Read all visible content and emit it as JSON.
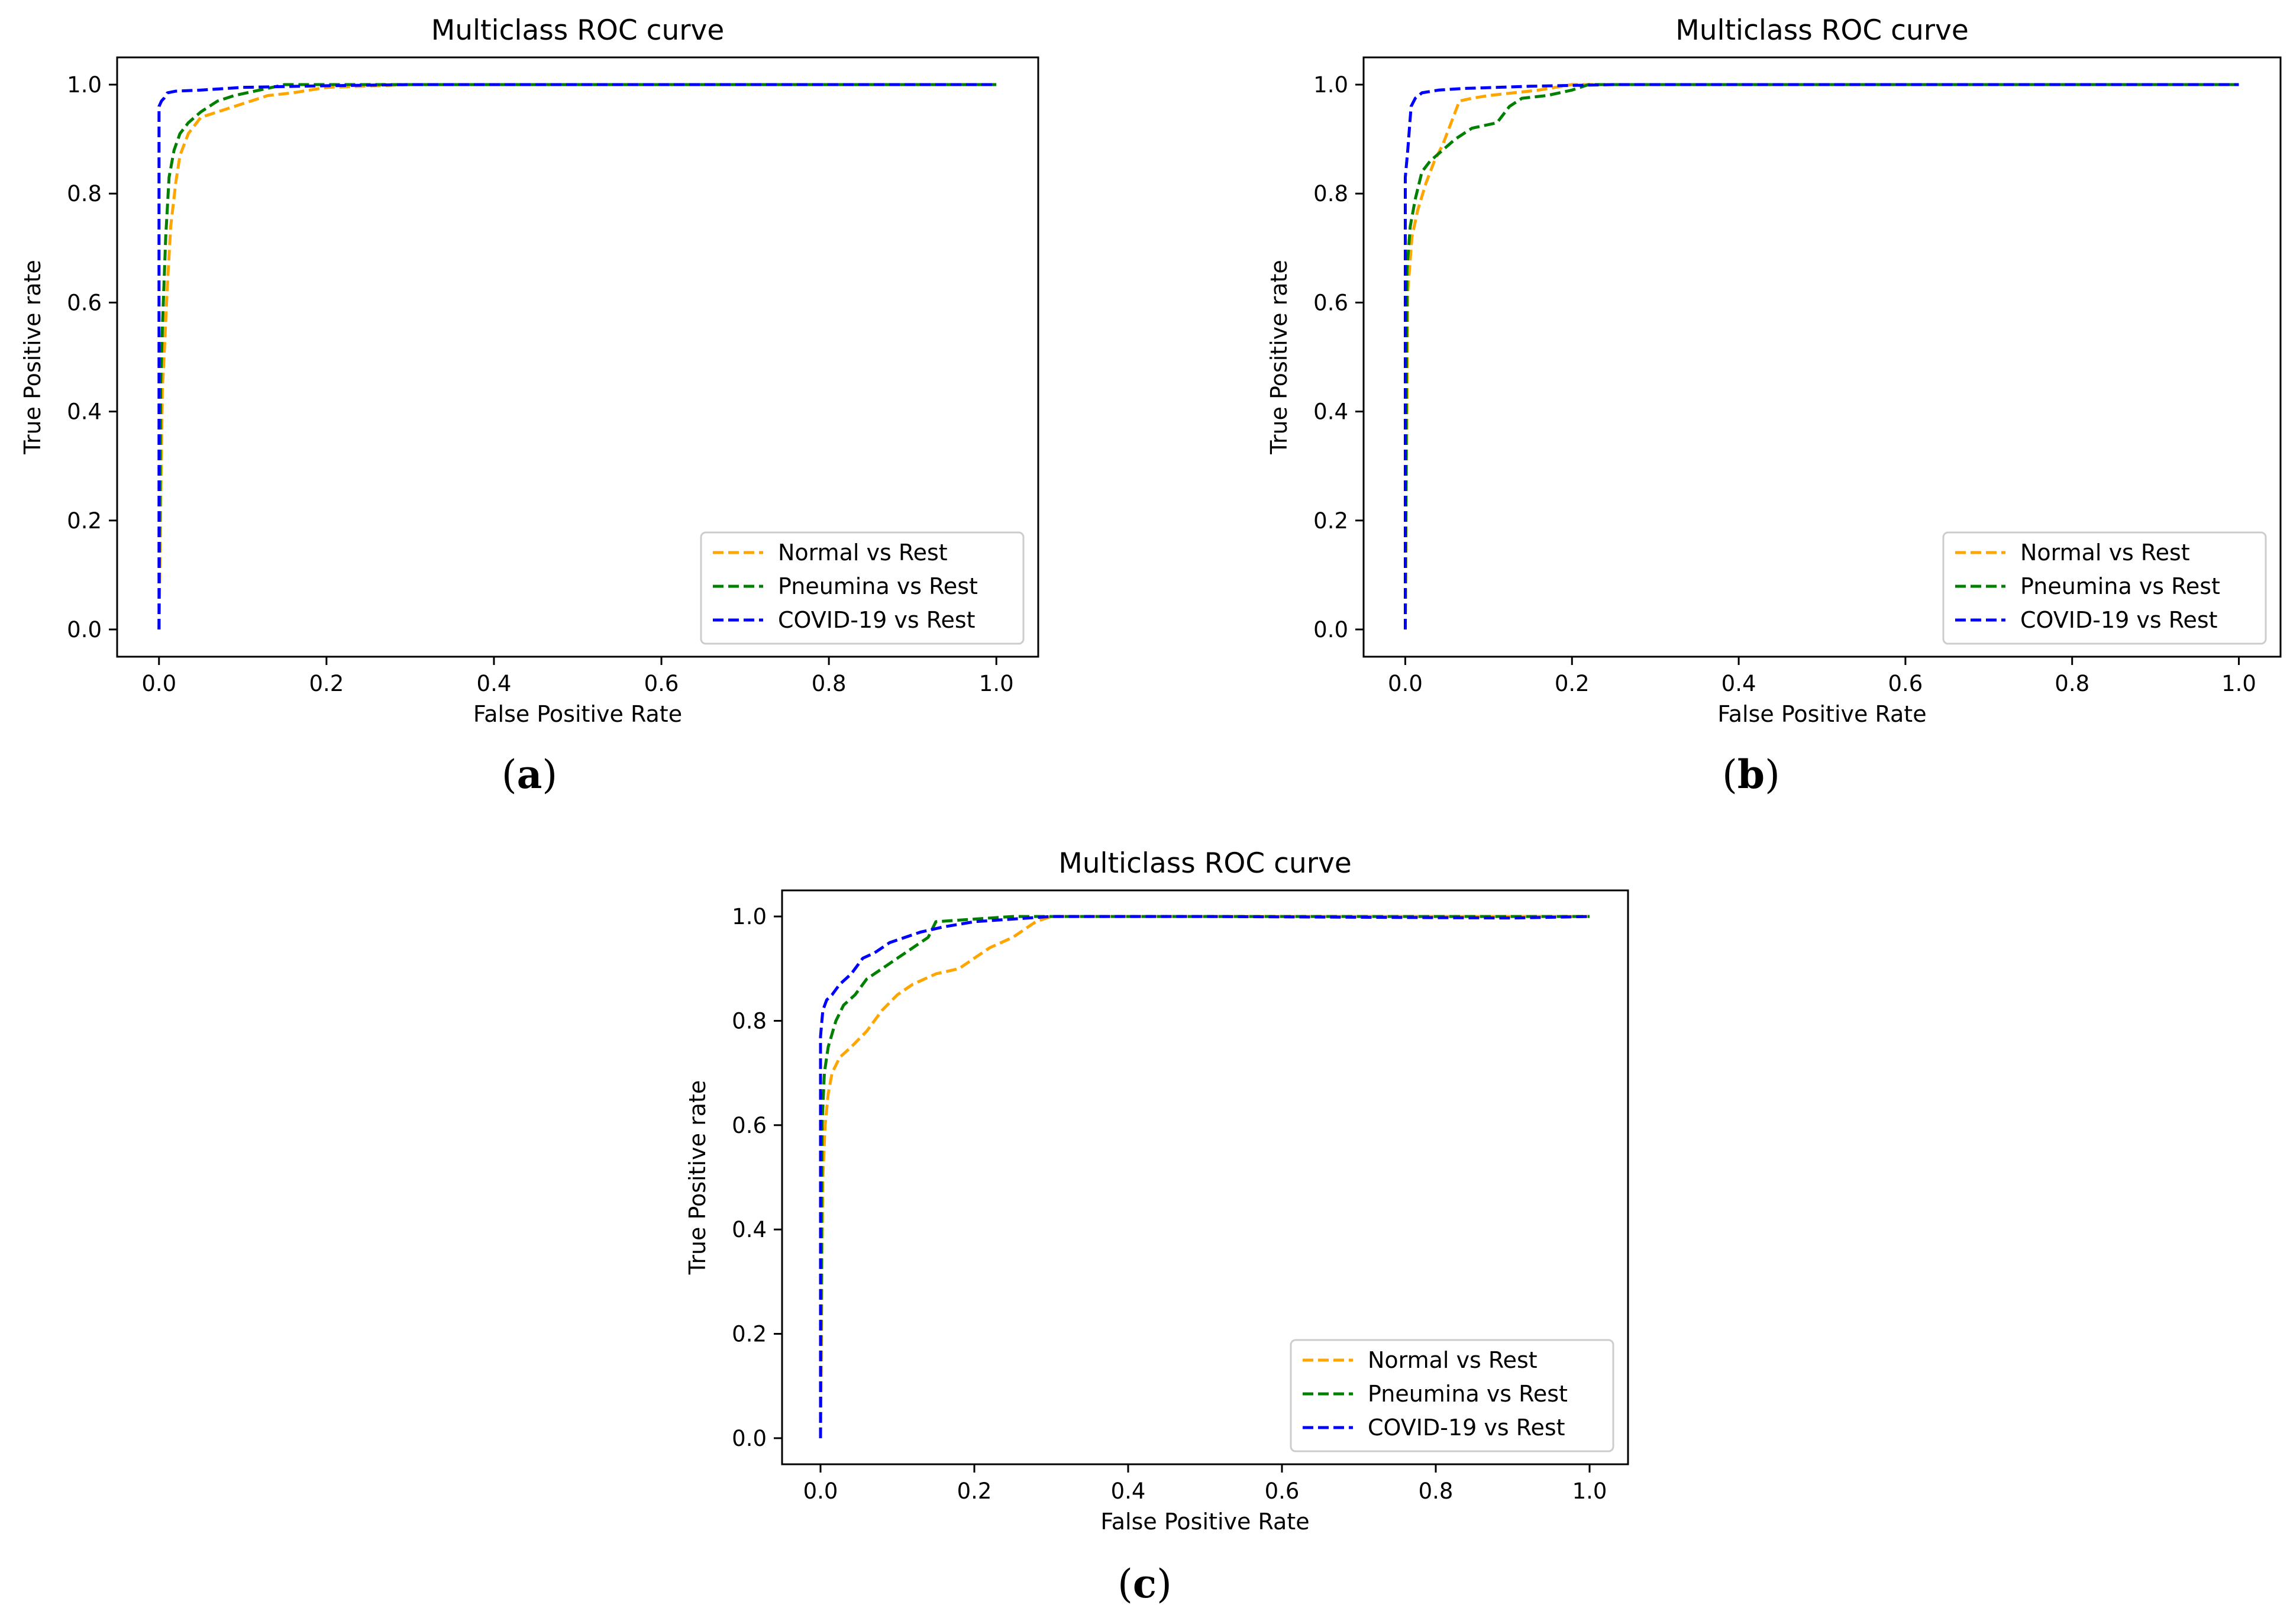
{
  "chart_data": [
    {
      "type": "line",
      "panel": "a",
      "title": "Multiclass ROC curve",
      "xlabel": "False Positive Rate",
      "ylabel": "True Positive rate",
      "xlim": [
        -0.05,
        1.05
      ],
      "ylim": [
        -0.05,
        1.05
      ],
      "xticks": [
        "0.0",
        "0.2",
        "0.4",
        "0.6",
        "0.8",
        "1.0"
      ],
      "yticks": [
        "0.0",
        "0.2",
        "0.4",
        "0.6",
        "0.8",
        "1.0"
      ],
      "legend_position": "lower-right",
      "series": [
        {
          "name": "Normal vs Rest",
          "color": "#FFA500",
          "x": [
            0.0,
            0.004,
            0.006,
            0.01,
            0.014,
            0.02,
            0.025,
            0.035,
            0.05,
            0.07,
            0.09,
            0.11,
            0.13,
            0.16,
            0.2,
            0.3,
            0.45,
            1.0
          ],
          "y": [
            0.0,
            0.44,
            0.5,
            0.63,
            0.74,
            0.82,
            0.87,
            0.91,
            0.94,
            0.95,
            0.96,
            0.97,
            0.98,
            0.985,
            0.995,
            1.0,
            1.0,
            1.0
          ]
        },
        {
          "name": "Pneumina vs Rest",
          "color": "#008000",
          "x": [
            0.0,
            0.002,
            0.004,
            0.008,
            0.012,
            0.018,
            0.025,
            0.035,
            0.05,
            0.07,
            0.09,
            0.12,
            0.15,
            0.2,
            0.3,
            0.45,
            1.0
          ],
          "y": [
            0.0,
            0.45,
            0.55,
            0.72,
            0.83,
            0.88,
            0.91,
            0.93,
            0.95,
            0.97,
            0.98,
            0.99,
            1.0,
            1.0,
            1.0,
            1.0,
            1.0
          ]
        },
        {
          "name": "COVID-19 vs Rest",
          "color": "#0000FF",
          "x": [
            0.0,
            0.0,
            0.003,
            0.006,
            0.01,
            0.02,
            0.05,
            0.1,
            0.2,
            0.3,
            0.45,
            1.0
          ],
          "y": [
            0.0,
            0.96,
            0.97,
            0.975,
            0.985,
            0.988,
            0.99,
            0.995,
            0.998,
            1.0,
            1.0,
            1.0
          ]
        }
      ]
    },
    {
      "type": "line",
      "panel": "b",
      "title": "Multiclass ROC curve",
      "xlabel": "False Positive Rate",
      "ylabel": "True Positive rate",
      "xlim": [
        -0.05,
        1.05
      ],
      "ylim": [
        -0.05,
        1.05
      ],
      "xticks": [
        "0.0",
        "0.2",
        "0.4",
        "0.6",
        "0.8",
        "1.0"
      ],
      "yticks": [
        "0.0",
        "0.2",
        "0.4",
        "0.6",
        "0.8",
        "1.0"
      ],
      "legend_position": "lower-right",
      "series": [
        {
          "name": "Normal vs Rest",
          "color": "#FFA500",
          "x": [
            0.0,
            0.003,
            0.008,
            0.015,
            0.025,
            0.035,
            0.045,
            0.055,
            0.065,
            0.08,
            0.1,
            0.13,
            0.16,
            0.2,
            0.3,
            1.0
          ],
          "y": [
            0.0,
            0.62,
            0.72,
            0.77,
            0.82,
            0.86,
            0.89,
            0.93,
            0.97,
            0.975,
            0.98,
            0.985,
            0.99,
            1.0,
            1.0,
            1.0
          ]
        },
        {
          "name": "Pneumina vs Rest",
          "color": "#008000",
          "x": [
            0.0,
            0.002,
            0.006,
            0.012,
            0.02,
            0.03,
            0.045,
            0.06,
            0.08,
            0.11,
            0.125,
            0.14,
            0.17,
            0.2,
            0.22,
            0.3,
            1.0
          ],
          "y": [
            0.0,
            0.66,
            0.74,
            0.79,
            0.84,
            0.86,
            0.88,
            0.9,
            0.92,
            0.93,
            0.96,
            0.975,
            0.98,
            0.99,
            1.0,
            1.0,
            1.0
          ]
        },
        {
          "name": "COVID-19 vs Rest",
          "color": "#0000FF",
          "x": [
            0.0,
            0.0,
            0.003,
            0.007,
            0.012,
            0.02,
            0.04,
            0.07,
            0.15,
            0.25,
            0.36,
            1.0
          ],
          "y": [
            0.0,
            0.83,
            0.88,
            0.96,
            0.975,
            0.985,
            0.99,
            0.993,
            0.997,
            1.0,
            1.0,
            1.0
          ]
        }
      ]
    },
    {
      "type": "line",
      "panel": "c",
      "title": "Multiclass ROC curve",
      "xlabel": "False Positive Rate",
      "ylabel": "True Positive rate",
      "xlim": [
        -0.05,
        1.05
      ],
      "ylim": [
        -0.05,
        1.05
      ],
      "xticks": [
        "0.0",
        "0.2",
        "0.4",
        "0.6",
        "0.8",
        "1.0"
      ],
      "yticks": [
        "0.0",
        "0.2",
        "0.4",
        "0.6",
        "0.8",
        "1.0"
      ],
      "legend_position": "lower-right",
      "series": [
        {
          "name": "Normal vs Rest",
          "color": "#FFA500",
          "x": [
            0.0,
            0.003,
            0.006,
            0.01,
            0.015,
            0.025,
            0.04,
            0.06,
            0.08,
            0.1,
            0.12,
            0.15,
            0.18,
            0.2,
            0.22,
            0.25,
            0.28,
            0.3,
            0.5,
            1.0
          ],
          "y": [
            0.0,
            0.5,
            0.6,
            0.66,
            0.7,
            0.73,
            0.75,
            0.78,
            0.82,
            0.85,
            0.87,
            0.89,
            0.9,
            0.92,
            0.94,
            0.96,
            0.99,
            1.0,
            1.0,
            1.0
          ]
        },
        {
          "name": "Pneumina vs Rest",
          "color": "#008000",
          "x": [
            0.0,
            0.002,
            0.005,
            0.01,
            0.02,
            0.03,
            0.045,
            0.06,
            0.08,
            0.1,
            0.12,
            0.14,
            0.15,
            0.2,
            0.25,
            0.3,
            0.5,
            1.0
          ],
          "y": [
            0.0,
            0.6,
            0.7,
            0.75,
            0.8,
            0.83,
            0.85,
            0.88,
            0.9,
            0.92,
            0.94,
            0.96,
            0.99,
            0.995,
            1.0,
            1.0,
            1.0,
            1.0
          ]
        },
        {
          "name": "COVID-19 vs Rest",
          "color": "#0000FF",
          "x": [
            0.0,
            0.0,
            0.003,
            0.008,
            0.015,
            0.025,
            0.04,
            0.055,
            0.07,
            0.09,
            0.11,
            0.13,
            0.16,
            0.2,
            0.25,
            0.3,
            0.5,
            0.9,
            1.0
          ],
          "y": [
            0.0,
            0.77,
            0.82,
            0.84,
            0.85,
            0.87,
            0.89,
            0.92,
            0.93,
            0.95,
            0.96,
            0.97,
            0.98,
            0.99,
            0.995,
            1.0,
            1.0,
            0.997,
            1.0
          ]
        }
      ]
    }
  ],
  "panel_labels": [
    "a",
    "b",
    "c"
  ]
}
